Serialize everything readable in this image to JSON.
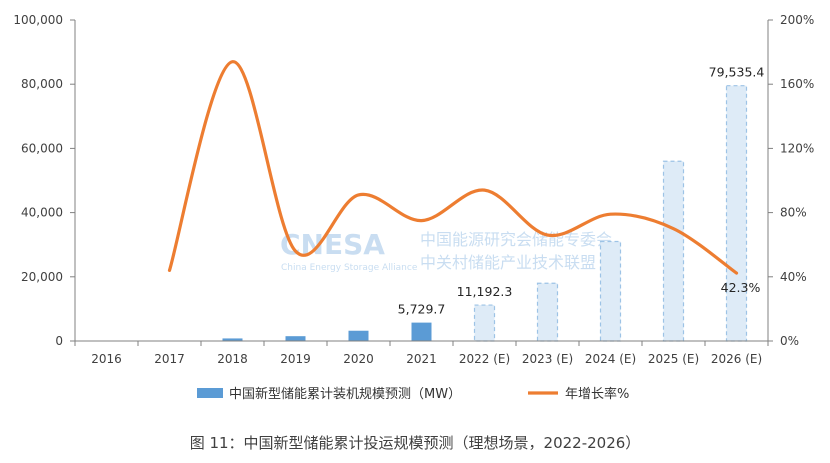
{
  "chart_data": {
    "type": "bar",
    "categories": [
      "2016",
      "2017",
      "2018",
      "2019",
      "2020",
      "2021",
      "2022 (E)",
      "2023 (E)",
      "2024 (E)",
      "2025 (E)",
      "2026 (E)"
    ],
    "series": [
      {
        "name": "中国新型储能累计装机规模预测（MW）",
        "type": "bar",
        "axis": "left",
        "values": [
          0,
          0,
          800,
          1500,
          3200,
          5729.7,
          11192.3,
          18000,
          31000,
          56000,
          79535.4
        ],
        "estimated": [
          false,
          false,
          false,
          false,
          false,
          false,
          true,
          true,
          true,
          true,
          true
        ]
      },
      {
        "name": "年增长率%",
        "type": "line",
        "axis": "right",
        "values": [
          null,
          44,
          174,
          56,
          91,
          75,
          94,
          66,
          79,
          70,
          42.3
        ]
      }
    ],
    "y_left": {
      "min": 0,
      "max": 100000,
      "ticks": [
        "0",
        "20,000",
        "40,000",
        "60,000",
        "80,000",
        "100,000"
      ]
    },
    "y_right": {
      "min": 0,
      "max": 200,
      "ticks": [
        "0%",
        "40%",
        "80%",
        "120%",
        "160%",
        "200%"
      ]
    },
    "data_labels": [
      {
        "category": "2021",
        "text": "5,729.7"
      },
      {
        "category": "2022 (E)",
        "text": "11,192.3"
      },
      {
        "category": "2026 (E)",
        "text": "79,535.4"
      }
    ],
    "line_label": "42.3%",
    "legend_position": "bottom",
    "grid": false,
    "colors": {
      "bar": "#5b9bd5",
      "bar_estimated": "#deebf7",
      "bar_estimated_border": "#9dc3e6",
      "line": "#ed7d31",
      "axis": "#808080"
    },
    "watermark": {
      "logo": "CNESA",
      "sub": "China Energy Storage Alliance",
      "line1": "中国能源研究会储能专委会",
      "line2": "中关村储能产业技术联盟"
    }
  },
  "caption": "图 11：中国新型储能累计投运规模预测（理想场景，2022-2026）"
}
